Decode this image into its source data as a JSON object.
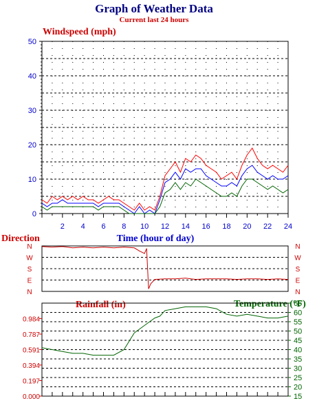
{
  "header": {
    "title": "Graph of Weather Data",
    "subtitle": "Current last 24 hours"
  },
  "chart_data": [
    {
      "type": "line",
      "panel": "windspeed",
      "ylabel": "Windspeed (mph)",
      "xlabel": "Time (hour of day)",
      "xlim": [
        0,
        24
      ],
      "ylim": [
        0,
        50
      ],
      "x_ticks": [
        "2",
        "4",
        "6",
        "8",
        "10",
        "12",
        "14",
        "16",
        "18",
        "20",
        "22",
        "24"
      ],
      "y_ticks": [
        "0",
        "10",
        "20",
        "30",
        "40",
        "50"
      ],
      "grid": true,
      "colors": {
        "gust": "#ff0000",
        "average": "#0000ff",
        "minimum": "#006400",
        "axis": "#0000cc"
      },
      "series": [
        {
          "role": "gust",
          "x": [
            0,
            0.5,
            1,
            1.5,
            2,
            2.5,
            3,
            3.5,
            4,
            4.5,
            5,
            5.5,
            6,
            6.5,
            7,
            7.5,
            8,
            8.5,
            9,
            9.5,
            10,
            10.5,
            11,
            11.5,
            12,
            12.5,
            13,
            13.5,
            14,
            14.5,
            15,
            15.5,
            16,
            16.5,
            17,
            17.5,
            18,
            18.5,
            19,
            19.5,
            20,
            20.5,
            21,
            21.5,
            22,
            22.5,
            23,
            23.5,
            24
          ],
          "values": [
            4,
            3,
            5,
            4,
            5,
            4,
            5,
            4,
            5,
            4,
            4,
            3,
            4,
            5,
            4,
            4,
            3,
            2,
            1,
            3,
            1,
            2,
            1,
            5,
            11,
            13,
            15,
            12,
            16,
            15,
            17,
            16,
            14,
            13,
            12,
            10,
            11,
            12,
            10,
            14,
            17,
            19,
            16,
            14,
            13,
            14,
            13,
            12,
            14
          ]
        },
        {
          "role": "average",
          "x": [
            0,
            0.5,
            1,
            1.5,
            2,
            2.5,
            3,
            3.5,
            4,
            4.5,
            5,
            5.5,
            6,
            6.5,
            7,
            7.5,
            8,
            8.5,
            9,
            9.5,
            10,
            10.5,
            11,
            11.5,
            12,
            12.5,
            13,
            13.5,
            14,
            14.5,
            15,
            15.5,
            16,
            16.5,
            17,
            17.5,
            18,
            18.5,
            19,
            19.5,
            20,
            20.5,
            21,
            21.5,
            22,
            22.5,
            23,
            23.5,
            24
          ],
          "values": [
            3,
            2,
            3,
            3,
            4,
            3,
            3,
            3,
            3,
            3,
            3,
            2,
            3,
            3,
            3,
            3,
            2,
            1,
            0,
            2,
            0,
            1,
            0,
            4,
            9,
            10,
            12,
            10,
            13,
            12,
            13,
            13,
            11,
            10,
            9,
            8,
            8,
            9,
            8,
            11,
            13,
            14,
            12,
            11,
            10,
            11,
            10,
            10,
            11
          ]
        },
        {
          "role": "minimum",
          "x": [
            0,
            0.5,
            1,
            1.5,
            2,
            2.5,
            3,
            3.5,
            4,
            4.5,
            5,
            5.5,
            6,
            6.5,
            7,
            7.5,
            8,
            8.5,
            9,
            9.5,
            10,
            10.5,
            11,
            11.5,
            12,
            12.5,
            13,
            13.5,
            14,
            14.5,
            15,
            15.5,
            16,
            16.5,
            17,
            17.5,
            18,
            18.5,
            19,
            19.5,
            20,
            20.5,
            21,
            21.5,
            22,
            22.5,
            23,
            23.5,
            24
          ],
          "values": [
            2,
            1,
            2,
            2,
            2,
            2,
            2,
            2,
            2,
            2,
            2,
            1,
            2,
            2,
            2,
            2,
            1,
            0,
            0,
            0,
            0,
            0,
            0,
            2,
            6,
            7,
            9,
            7,
            9,
            8,
            10,
            9,
            8,
            7,
            6,
            5,
            5,
            6,
            5,
            8,
            10,
            10,
            9,
            8,
            7,
            8,
            7,
            6,
            7
          ]
        }
      ]
    },
    {
      "type": "line",
      "panel": "direction",
      "ylabel": "Direction",
      "y_ticks": [
        "N",
        "W",
        "S",
        "E",
        "N"
      ],
      "xlim": [
        0,
        24
      ],
      "ylim": [
        0,
        360
      ],
      "colors": {
        "line": "#cc0000"
      },
      "series": [
        {
          "role": "direction",
          "x": [
            0,
            1,
            2,
            3,
            4,
            5,
            6,
            7,
            8,
            9,
            9.5,
            10,
            10.2,
            10.4,
            10.6,
            11,
            12,
            13,
            14,
            15,
            16,
            17,
            18,
            19,
            20,
            21,
            22,
            23,
            24
          ],
          "values": [
            355,
            350,
            355,
            345,
            350,
            345,
            350,
            345,
            350,
            345,
            320,
            300,
            340,
            20,
            60,
            95,
            100,
            100,
            105,
            95,
            100,
            100,
            100,
            95,
            100,
            100,
            95,
            100,
            95
          ]
        }
      ]
    },
    {
      "type": "line",
      "panel": "rainfall-temperature",
      "ylabel": "Rainfall (in)",
      "y2label": "Temperature (°F)",
      "xlim": [
        0,
        24
      ],
      "ylim": [
        0,
        1.18
      ],
      "y2lim": [
        15,
        65
      ],
      "y_ticks": [
        "0.000",
        "0.197",
        "0.394",
        "0.591",
        "0.787",
        "0.984"
      ],
      "y2_ticks": [
        "15",
        "20",
        "25",
        "30",
        "35",
        "40",
        "45",
        "50",
        "55",
        "60",
        "65"
      ],
      "grid": true,
      "colors": {
        "rainfall": "#cc0000",
        "temperature": "#006400"
      },
      "series": [
        {
          "role": "temperature",
          "x": [
            0,
            1,
            2,
            3,
            4,
            5,
            6,
            7,
            8,
            9,
            10,
            10.5,
            11,
            11.5,
            12,
            13,
            14,
            15,
            16,
            17,
            18,
            19,
            20,
            21,
            22,
            23,
            24
          ],
          "values": [
            41,
            40,
            39,
            38,
            38,
            37,
            37,
            37,
            40,
            49,
            53,
            55,
            57,
            58,
            61,
            62,
            63,
            63,
            63,
            62,
            59,
            58,
            59,
            58,
            57,
            57,
            58
          ]
        }
      ]
    }
  ]
}
